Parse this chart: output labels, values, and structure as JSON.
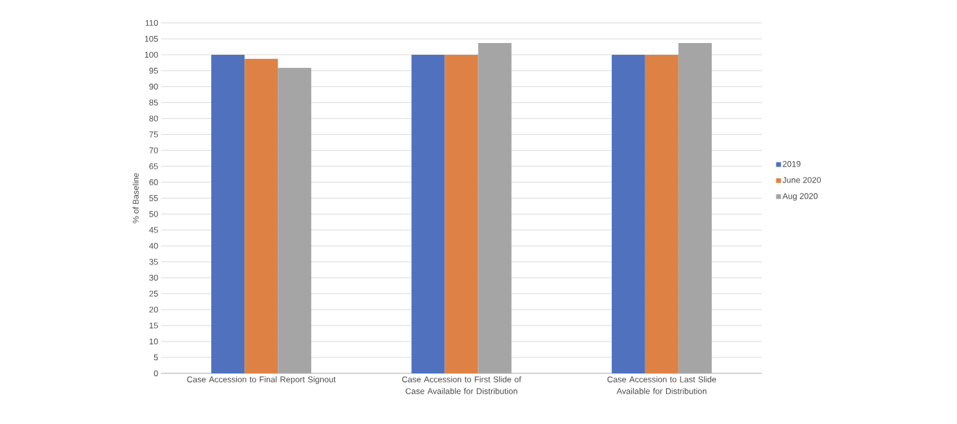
{
  "chart_data": {
    "type": "bar",
    "ylabel": "% of Baseline",
    "categories": [
      "Case Accession to Final Report Signout",
      "Case Accession to First Slide of Case Available for Distribution",
      "Case Accession to Last Slide Available for Distribution"
    ],
    "series": [
      {
        "name": "2019",
        "color": "#4f71be",
        "values": [
          100,
          100,
          100
        ]
      },
      {
        "name": "June 2020",
        "color": "#dd8244",
        "values": [
          98.7,
          100,
          100
        ]
      },
      {
        "name": "Aug 2020",
        "color": "#a5a5a5",
        "values": [
          95.9,
          103.7,
          103.7
        ]
      }
    ],
    "ylim": [
      0,
      110
    ],
    "yticks": [
      0,
      5,
      10,
      15,
      20,
      25,
      30,
      35,
      40,
      45,
      50,
      55,
      60,
      65,
      70,
      75,
      80,
      85,
      90,
      95,
      100,
      105,
      110
    ],
    "grid": "y",
    "legend": "right"
  }
}
